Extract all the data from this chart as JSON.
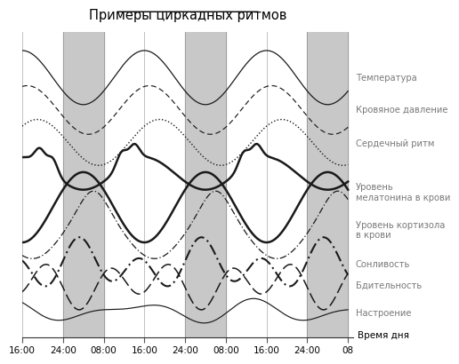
{
  "title": "Примеры циркадных ритмов",
  "xlabel": "Время дня",
  "xtick_labels": [
    "16:00",
    "24:00",
    "08:00",
    "16:00",
    "24:00",
    "08:00",
    "16:00",
    "24:00",
    "08"
  ],
  "bg_color": "#ffffff",
  "shade_color": "#c8c8c8",
  "line_color": "#1a1a1a",
  "text_color": "#7a7a7a",
  "title_color": "#000000",
  "legend_labels": [
    "Температура",
    "Кровяное давление",
    "Сердечный ритм",
    "Уровень\nмелатонина в крови",
    "Уровень кортизола\nв крови",
    "Сонливость",
    "Бдительность",
    "Настроение"
  ]
}
